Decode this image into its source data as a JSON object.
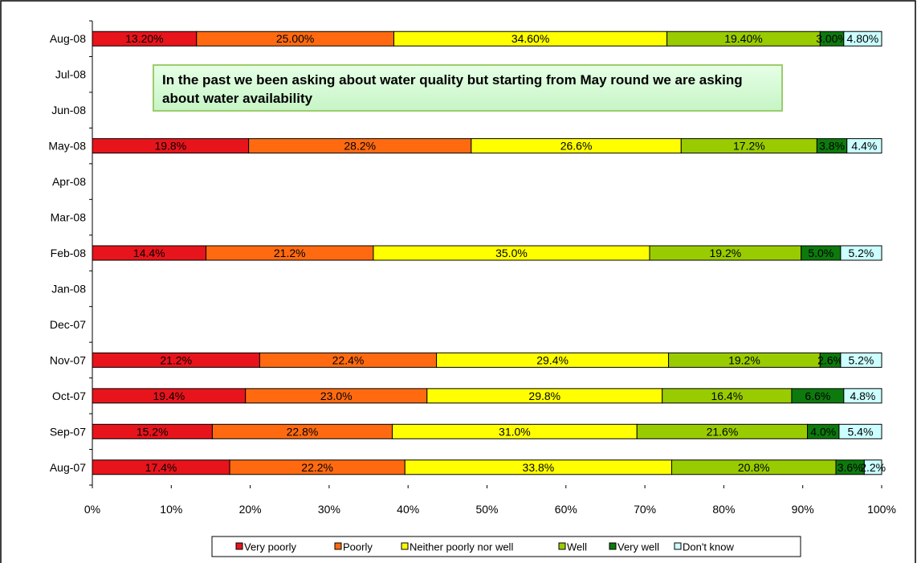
{
  "chart_data": {
    "type": "stacked_bar_horizontal",
    "annotation": "In the past we been asking about water quality but starting from May round we are asking about water availability",
    "categories": [
      "Aug-08",
      "Jul-08",
      "Jun-08",
      "May-08",
      "Apr-08",
      "Mar-08",
      "Feb-08",
      "Jan-08",
      "Dec-07",
      "Nov-07",
      "Oct-07",
      "Sep-07",
      "Aug-07"
    ],
    "series": [
      {
        "name": "Very poorly",
        "color": "#e8141c",
        "values": [
          13.2,
          null,
          null,
          19.8,
          null,
          null,
          14.4,
          null,
          null,
          21.2,
          19.4,
          15.2,
          17.4
        ],
        "value_labels": [
          "13.20%",
          null,
          null,
          "19.8%",
          null,
          null,
          "14.4%",
          null,
          null,
          "21.2%",
          "19.4%",
          "15.2%",
          "17.4%"
        ]
      },
      {
        "name": "Poorly",
        "color": "#ff6a10",
        "values": [
          25.0,
          null,
          null,
          28.2,
          null,
          null,
          21.2,
          null,
          null,
          22.4,
          23.0,
          22.8,
          22.2
        ],
        "value_labels": [
          "25.00%",
          null,
          null,
          "28.2%",
          null,
          null,
          "21.2%",
          null,
          null,
          "22.4%",
          "23.0%",
          "22.8%",
          "22.2%"
        ]
      },
      {
        "name": "Neither poorly nor well",
        "color": "#ffff00",
        "values": [
          34.6,
          null,
          null,
          26.6,
          null,
          null,
          35.0,
          null,
          null,
          29.4,
          29.8,
          31.0,
          33.8
        ],
        "value_labels": [
          "34.60%",
          null,
          null,
          "26.6%",
          null,
          null,
          "35.0%",
          null,
          null,
          "29.4%",
          "29.8%",
          "31.0%",
          "33.8%"
        ]
      },
      {
        "name": "Well",
        "color": "#99cc00",
        "values": [
          19.4,
          null,
          null,
          17.2,
          null,
          null,
          19.2,
          null,
          null,
          19.2,
          16.4,
          21.6,
          20.8
        ],
        "value_labels": [
          "19.40%",
          null,
          null,
          "17.2%",
          null,
          null,
          "19.2%",
          null,
          null,
          "19.2%",
          "16.4%",
          "21.6%",
          "20.8%"
        ]
      },
      {
        "name": "Very well",
        "color": "#0d7a0d",
        "values": [
          3.0,
          null,
          null,
          3.8,
          null,
          null,
          5.0,
          null,
          null,
          2.6,
          6.6,
          4.0,
          3.6
        ],
        "value_labels": [
          "3.00%",
          null,
          null,
          "3.8%",
          null,
          null,
          "5.0%",
          null,
          null,
          "2.6%",
          "6.6%",
          "4.0%",
          "3.6%"
        ]
      },
      {
        "name": "Don't know",
        "color": "#ccffff",
        "values": [
          4.8,
          null,
          null,
          4.4,
          null,
          null,
          5.2,
          null,
          null,
          5.2,
          4.8,
          5.4,
          2.2
        ],
        "value_labels": [
          "4.80%",
          null,
          null,
          "4.4%",
          null,
          null,
          "5.2%",
          null,
          null,
          "5.2%",
          "4.8%",
          "5.4%",
          "2.2%"
        ]
      }
    ],
    "xlim": [
      0,
      100
    ],
    "xticks": [
      {
        "value": 0,
        "label": "0%"
      },
      {
        "value": 10,
        "label": "10%"
      },
      {
        "value": 20,
        "label": "20%"
      },
      {
        "value": 30,
        "label": "30%"
      },
      {
        "value": 40,
        "label": "40%"
      },
      {
        "value": 50,
        "label": "50%"
      },
      {
        "value": 60,
        "label": "60%"
      },
      {
        "value": 70,
        "label": "70%"
      },
      {
        "value": 80,
        "label": "80%"
      },
      {
        "value": 90,
        "label": "90%"
      },
      {
        "value": 100,
        "label": "100%"
      }
    ],
    "legend": "bottom",
    "grid": false
  }
}
